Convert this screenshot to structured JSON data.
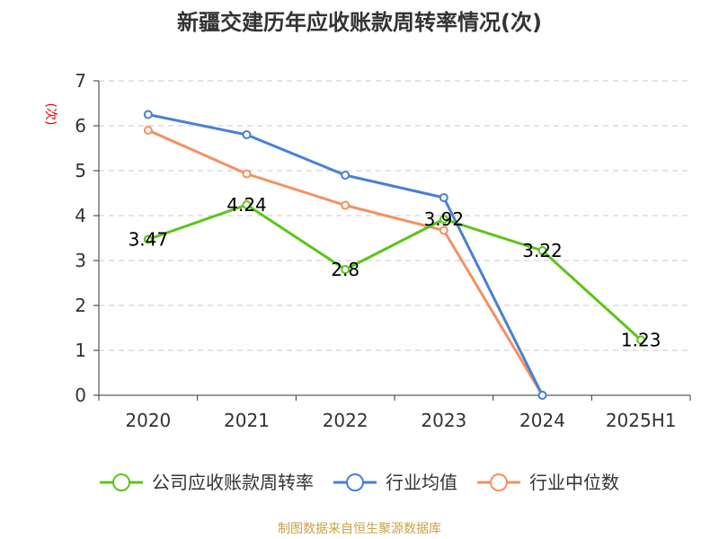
{
  "chart_data": {
    "type": "line",
    "title": "新疆交建历年应收账款周转率情况(次)",
    "ylabel": "(次)",
    "xlabel": "",
    "ylim": [
      0,
      7
    ],
    "yticks": [
      0,
      1,
      2,
      3,
      4,
      5,
      6,
      7
    ],
    "categories": [
      "2020",
      "2021",
      "2022",
      "2023",
      "2024",
      "2025H1"
    ],
    "grid": true,
    "legend_position": "bottom",
    "series": [
      {
        "name": "公司应收账款周转率",
        "color": "#5cc41a",
        "values": [
          3.47,
          4.24,
          2.8,
          3.92,
          3.22,
          1.23
        ],
        "labels": [
          "3.47",
          "4.24",
          "2.8",
          "3.92",
          "3.22",
          "1.23"
        ]
      },
      {
        "name": "行业均值",
        "color": "#4a7fd6",
        "values": [
          6.25,
          5.8,
          4.9,
          4.4,
          0,
          null
        ]
      },
      {
        "name": "行业中位数",
        "color": "#f59062",
        "values": [
          5.9,
          4.93,
          4.23,
          3.67,
          0,
          null
        ]
      }
    ]
  },
  "source": "制图数据来自恒生聚源数据库"
}
